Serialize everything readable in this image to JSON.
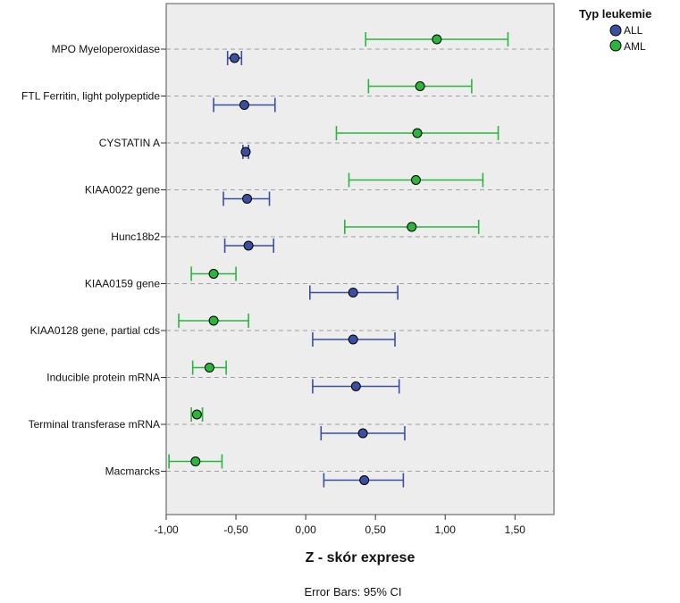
{
  "chart_data": {
    "type": "scatter",
    "subtype": "dot-with-error-bars",
    "orientation": "horizontal",
    "xlabel": "Z - skór exprese",
    "footnote": "Error Bars: 95% CI",
    "xlim": [
      -1.0,
      1.78
    ],
    "xticks": [
      -1.0,
      -0.5,
      0.0,
      0.5,
      1.0,
      1.5
    ],
    "xtick_labels": [
      "-1,00",
      "-0,50",
      "0,00",
      "0,50",
      "1,00",
      "1,50"
    ],
    "grid": "horizontal dashed per category",
    "legend": {
      "title": "Typ leukemie",
      "placement": "top-right outside",
      "entries": [
        "ALL",
        "AML"
      ]
    },
    "categories": [
      "MPO Myeloperoxidase",
      "FTL Ferritin, light polypeptide",
      "CYSTATIN A",
      "KIAA0022 gene",
      "Hunc18b2",
      "KIAA0159 gene",
      "KIAA0128 gene, partial cds",
      "Inducible protein mRNA",
      "Terminal transferase mRNA",
      "Macmarcks"
    ],
    "series": [
      {
        "name": "AML",
        "color": "#2ab53d",
        "points": [
          {
            "mean": 0.94,
            "lower": 0.43,
            "upper": 1.45
          },
          {
            "mean": 0.82,
            "lower": 0.45,
            "upper": 1.19
          },
          {
            "mean": 0.8,
            "lower": 0.22,
            "upper": 1.38
          },
          {
            "mean": 0.79,
            "lower": 0.31,
            "upper": 1.27
          },
          {
            "mean": 0.76,
            "lower": 0.28,
            "upper": 1.24
          },
          {
            "mean": -0.66,
            "lower": -0.82,
            "upper": -0.5
          },
          {
            "mean": -0.66,
            "lower": -0.91,
            "upper": -0.41
          },
          {
            "mean": -0.69,
            "lower": -0.81,
            "upper": -0.57
          },
          {
            "mean": -0.78,
            "lower": -0.82,
            "upper": -0.74
          },
          {
            "mean": -0.79,
            "lower": -0.98,
            "upper": -0.6
          }
        ]
      },
      {
        "name": "ALL",
        "color": "#3a4fa0",
        "points": [
          {
            "mean": -0.51,
            "lower": -0.56,
            "upper": -0.46
          },
          {
            "mean": -0.44,
            "lower": -0.66,
            "upper": -0.22
          },
          {
            "mean": -0.43,
            "lower": -0.45,
            "upper": -0.41
          },
          {
            "mean": -0.42,
            "lower": -0.59,
            "upper": -0.26
          },
          {
            "mean": -0.41,
            "lower": -0.58,
            "upper": -0.23
          },
          {
            "mean": 0.34,
            "lower": 0.03,
            "upper": 0.66
          },
          {
            "mean": 0.34,
            "lower": 0.05,
            "upper": 0.64
          },
          {
            "mean": 0.36,
            "lower": 0.05,
            "upper": 0.67
          },
          {
            "mean": 0.41,
            "lower": 0.11,
            "upper": 0.71
          },
          {
            "mean": 0.42,
            "lower": 0.13,
            "upper": 0.7
          }
        ]
      }
    ]
  }
}
